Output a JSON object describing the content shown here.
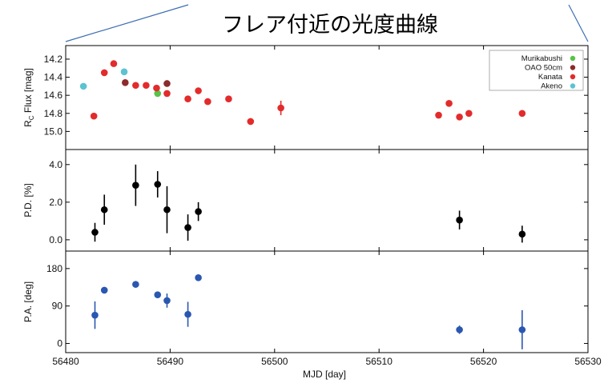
{
  "title": "フレア付近の光度曲線",
  "chart_data": [
    {
      "type": "scatter",
      "panel": "flux",
      "ylabel_main": "R",
      "ylabel_sub": "C",
      "ylabel_rest": " Flux [mag]",
      "ylim": [
        15.2,
        14.05
      ],
      "inverted_y": true,
      "yticks": [
        "14.2",
        "14.4",
        "14.6",
        "14.8",
        "15.0"
      ],
      "yticks_values": [
        14.2,
        14.4,
        14.6,
        14.8,
        15.0
      ],
      "legend_position": "top-right",
      "series": [
        {
          "name": "Murikabushi",
          "color": "#59c249",
          "points": [
            {
              "x": 56488.8,
              "y": 14.58
            }
          ]
        },
        {
          "name": "OAO 50cm",
          "color": "#8c2b2b",
          "points": [
            {
              "x": 56485.7,
              "y": 14.46
            },
            {
              "x": 56489.7,
              "y": 14.47
            }
          ]
        },
        {
          "name": "Kanata",
          "color": "#e32b2b",
          "points": [
            {
              "x": 56482.7,
              "y": 14.83
            },
            {
              "x": 56483.7,
              "y": 14.35
            },
            {
              "x": 56484.6,
              "y": 14.25
            },
            {
              "x": 56486.7,
              "y": 14.49
            },
            {
              "x": 56487.7,
              "y": 14.49
            },
            {
              "x": 56488.7,
              "y": 14.52
            },
            {
              "x": 56489.7,
              "y": 14.58
            },
            {
              "x": 56491.7,
              "y": 14.64
            },
            {
              "x": 56492.7,
              "y": 14.55
            },
            {
              "x": 56493.6,
              "y": 14.67
            },
            {
              "x": 56495.6,
              "y": 14.64
            },
            {
              "x": 56497.7,
              "y": 14.89
            },
            {
              "x": 56500.6,
              "y": 14.74,
              "err": 0.08
            },
            {
              "x": 56515.7,
              "y": 14.82
            },
            {
              "x": 56516.7,
              "y": 14.69
            },
            {
              "x": 56517.7,
              "y": 14.84
            },
            {
              "x": 56518.6,
              "y": 14.8
            },
            {
              "x": 56523.7,
              "y": 14.8
            }
          ]
        },
        {
          "name": "Akeno",
          "color": "#5bc3d2",
          "points": [
            {
              "x": 56481.7,
              "y": 14.5
            },
            {
              "x": 56485.6,
              "y": 14.34
            }
          ]
        }
      ]
    },
    {
      "type": "scatter",
      "panel": "pd",
      "ylabel": "P.D. [%]",
      "ylim": [
        -0.6,
        4.8
      ],
      "yticks": [
        "4.0",
        "2.0",
        "0.0"
      ],
      "yticks_values": [
        4.0,
        2.0,
        0.0
      ],
      "color": "#000000",
      "points": [
        {
          "x": 56482.8,
          "y": 0.4,
          "err": 0.5
        },
        {
          "x": 56483.7,
          "y": 1.6,
          "err": 0.8
        },
        {
          "x": 56486.7,
          "y": 2.9,
          "err": 1.1
        },
        {
          "x": 56488.8,
          "y": 2.95,
          "err": 0.7
        },
        {
          "x": 56489.7,
          "y": 1.6,
          "err": 1.25
        },
        {
          "x": 56491.7,
          "y": 0.65,
          "err": 0.7
        },
        {
          "x": 56492.7,
          "y": 1.5,
          "err": 0.5
        },
        {
          "x": 56517.7,
          "y": 1.05,
          "err": 0.5
        },
        {
          "x": 56523.7,
          "y": 0.3,
          "err": 0.45
        }
      ]
    },
    {
      "type": "scatter",
      "panel": "pa",
      "ylabel": "P.A. [deg]",
      "xlabel": "MJD [day]",
      "ylim": [
        -22,
        222
      ],
      "yticks": [
        "180",
        "90",
        "0"
      ],
      "yticks_values": [
        180,
        90,
        0
      ],
      "color": "#2a57b0",
      "points": [
        {
          "x": 56482.8,
          "y": 68,
          "err": 33
        },
        {
          "x": 56483.7,
          "y": 128,
          "err": 4
        },
        {
          "x": 56486.7,
          "y": 142,
          "err": 4
        },
        {
          "x": 56488.8,
          "y": 117,
          "err": 4
        },
        {
          "x": 56489.7,
          "y": 103,
          "err": 17
        },
        {
          "x": 56491.7,
          "y": 70,
          "err": 30
        },
        {
          "x": 56492.7,
          "y": 158,
          "err": 4
        },
        {
          "x": 56517.7,
          "y": 33,
          "err": 10
        },
        {
          "x": 56523.7,
          "y": 33,
          "err": 47
        }
      ]
    }
  ],
  "xaxis": {
    "xlim": [
      56480,
      56530
    ],
    "xticks": [
      "56480",
      "56490",
      "56500",
      "56510",
      "56520",
      "56530"
    ],
    "xticks_values": [
      56480,
      56490,
      56500,
      56510,
      56520,
      56530
    ]
  },
  "colors": {
    "zoom_line": "#3d6fb2",
    "frame": "#000000"
  }
}
